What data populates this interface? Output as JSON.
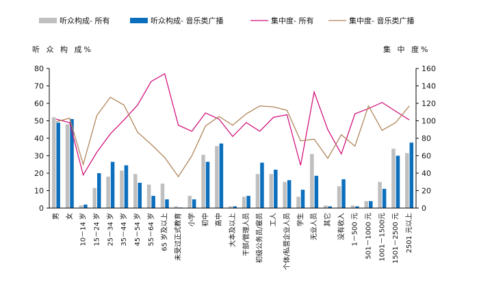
{
  "chart_data": {
    "type": "bar",
    "ylabel": "听 众 构 成%",
    "y2label": "集 中 度%",
    "ylim": [
      0,
      80
    ],
    "y2lim": [
      0,
      160
    ],
    "yticks": [
      0,
      10,
      20,
      30,
      40,
      50,
      60,
      70,
      80
    ],
    "y2ticks": [
      0,
      20,
      40,
      60,
      80,
      100,
      120,
      140,
      160
    ],
    "grid": false,
    "legend_position": "top",
    "categories": [
      "男",
      "女",
      "10－14 岁",
      "15－24 岁",
      "25－34 岁",
      "35－44 岁",
      "45－54 岁",
      "55－64 岁",
      "65 岁及以上",
      "未受过正式教育",
      "小学",
      "初中",
      "高中",
      "大本及以上",
      "干部/管理人员",
      "初级公务员/雇员",
      "工人",
      "个体/私营企业人员",
      "学生",
      "无业人员",
      "其它",
      "没有收入",
      "1－500 元",
      "501－1000 元",
      "1001－1500元",
      "1501－2500 元",
      "2501 元以上"
    ],
    "series": [
      {
        "name": "听众构成- 所有",
        "type": "bar",
        "axis": "left",
        "color": "#bfbfbf",
        "values": [
          52,
          48,
          1.5,
          11.5,
          18,
          21.5,
          19.5,
          13.5,
          14,
          1,
          7,
          30.5,
          35.5,
          1,
          6.5,
          19.5,
          19.5,
          15,
          6.5,
          31,
          1.5,
          12.5,
          1.5,
          4,
          15,
          34,
          31.5
        ]
      },
      {
        "name": "听众构成- 音乐类广播",
        "type": "bar",
        "axis": "left",
        "color": "#0c6fbd",
        "values": [
          49,
          51,
          2,
          20,
          26.5,
          24.5,
          14.5,
          7,
          5,
          0.3,
          5,
          26.5,
          37,
          1,
          7,
          26,
          22,
          16,
          10.5,
          18.5,
          1,
          16.5,
          1,
          4,
          11,
          30,
          37.5
        ]
      },
      {
        "name": "集中度- 所有",
        "type": "line",
        "axis": "right",
        "color": "#d2127c",
        "values": [
          102,
          98,
          38,
          64,
          85,
          101,
          118,
          145,
          154,
          95,
          88,
          109,
          102,
          82,
          98,
          88,
          104,
          107,
          49,
          133,
          90,
          62,
          108,
          114,
          121,
          111,
          101
        ]
      },
      {
        "name": "集中度- 音乐类广播",
        "type": "line",
        "axis": "right",
        "color": "#b0855a",
        "values": [
          99,
          103,
          50,
          106,
          127,
          118,
          87,
          73,
          58,
          36,
          60,
          94,
          105,
          95,
          108,
          117,
          116,
          112,
          77,
          79,
          57,
          84,
          71,
          117,
          89,
          98,
          117
        ]
      }
    ]
  }
}
